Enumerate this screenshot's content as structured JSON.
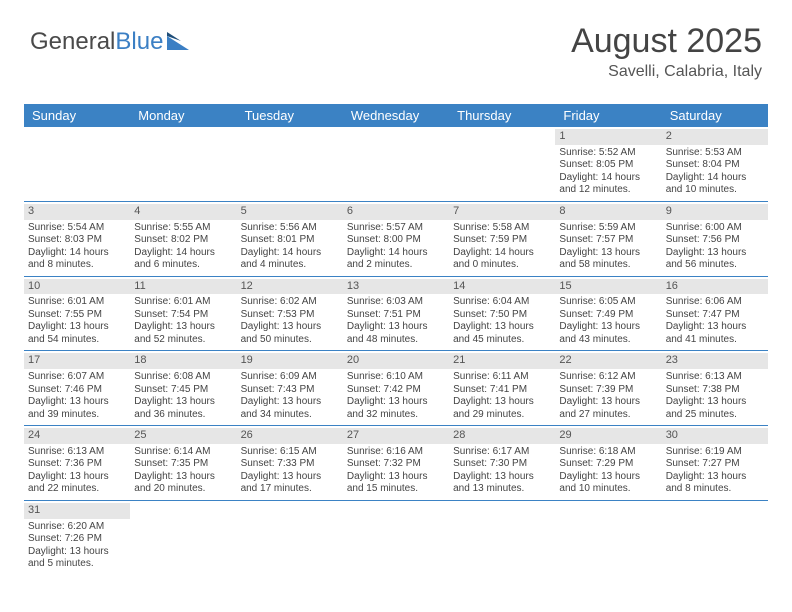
{
  "logo": {
    "text1": "General",
    "text2": "Blue",
    "color1": "#4a4a4a",
    "color2": "#3b7fc4"
  },
  "title": "August 2025",
  "location": "Savelli, Calabria, Italy",
  "header_bg": "#3b82c4",
  "row_border": "#3b82c4",
  "daynum_bg": "#e6e6e6",
  "days": [
    "Sunday",
    "Monday",
    "Tuesday",
    "Wednesday",
    "Thursday",
    "Friday",
    "Saturday"
  ],
  "weeks": [
    [
      null,
      null,
      null,
      null,
      null,
      {
        "n": "1",
        "sr": "Sunrise: 5:52 AM",
        "ss": "Sunset: 8:05 PM",
        "d1": "Daylight: 14 hours",
        "d2": "and 12 minutes."
      },
      {
        "n": "2",
        "sr": "Sunrise: 5:53 AM",
        "ss": "Sunset: 8:04 PM",
        "d1": "Daylight: 14 hours",
        "d2": "and 10 minutes."
      }
    ],
    [
      {
        "n": "3",
        "sr": "Sunrise: 5:54 AM",
        "ss": "Sunset: 8:03 PM",
        "d1": "Daylight: 14 hours",
        "d2": "and 8 minutes."
      },
      {
        "n": "4",
        "sr": "Sunrise: 5:55 AM",
        "ss": "Sunset: 8:02 PM",
        "d1": "Daylight: 14 hours",
        "d2": "and 6 minutes."
      },
      {
        "n": "5",
        "sr": "Sunrise: 5:56 AM",
        "ss": "Sunset: 8:01 PM",
        "d1": "Daylight: 14 hours",
        "d2": "and 4 minutes."
      },
      {
        "n": "6",
        "sr": "Sunrise: 5:57 AM",
        "ss": "Sunset: 8:00 PM",
        "d1": "Daylight: 14 hours",
        "d2": "and 2 minutes."
      },
      {
        "n": "7",
        "sr": "Sunrise: 5:58 AM",
        "ss": "Sunset: 7:59 PM",
        "d1": "Daylight: 14 hours",
        "d2": "and 0 minutes."
      },
      {
        "n": "8",
        "sr": "Sunrise: 5:59 AM",
        "ss": "Sunset: 7:57 PM",
        "d1": "Daylight: 13 hours",
        "d2": "and 58 minutes."
      },
      {
        "n": "9",
        "sr": "Sunrise: 6:00 AM",
        "ss": "Sunset: 7:56 PM",
        "d1": "Daylight: 13 hours",
        "d2": "and 56 minutes."
      }
    ],
    [
      {
        "n": "10",
        "sr": "Sunrise: 6:01 AM",
        "ss": "Sunset: 7:55 PM",
        "d1": "Daylight: 13 hours",
        "d2": "and 54 minutes."
      },
      {
        "n": "11",
        "sr": "Sunrise: 6:01 AM",
        "ss": "Sunset: 7:54 PM",
        "d1": "Daylight: 13 hours",
        "d2": "and 52 minutes."
      },
      {
        "n": "12",
        "sr": "Sunrise: 6:02 AM",
        "ss": "Sunset: 7:53 PM",
        "d1": "Daylight: 13 hours",
        "d2": "and 50 minutes."
      },
      {
        "n": "13",
        "sr": "Sunrise: 6:03 AM",
        "ss": "Sunset: 7:51 PM",
        "d1": "Daylight: 13 hours",
        "d2": "and 48 minutes."
      },
      {
        "n": "14",
        "sr": "Sunrise: 6:04 AM",
        "ss": "Sunset: 7:50 PM",
        "d1": "Daylight: 13 hours",
        "d2": "and 45 minutes."
      },
      {
        "n": "15",
        "sr": "Sunrise: 6:05 AM",
        "ss": "Sunset: 7:49 PM",
        "d1": "Daylight: 13 hours",
        "d2": "and 43 minutes."
      },
      {
        "n": "16",
        "sr": "Sunrise: 6:06 AM",
        "ss": "Sunset: 7:47 PM",
        "d1": "Daylight: 13 hours",
        "d2": "and 41 minutes."
      }
    ],
    [
      {
        "n": "17",
        "sr": "Sunrise: 6:07 AM",
        "ss": "Sunset: 7:46 PM",
        "d1": "Daylight: 13 hours",
        "d2": "and 39 minutes."
      },
      {
        "n": "18",
        "sr": "Sunrise: 6:08 AM",
        "ss": "Sunset: 7:45 PM",
        "d1": "Daylight: 13 hours",
        "d2": "and 36 minutes."
      },
      {
        "n": "19",
        "sr": "Sunrise: 6:09 AM",
        "ss": "Sunset: 7:43 PM",
        "d1": "Daylight: 13 hours",
        "d2": "and 34 minutes."
      },
      {
        "n": "20",
        "sr": "Sunrise: 6:10 AM",
        "ss": "Sunset: 7:42 PM",
        "d1": "Daylight: 13 hours",
        "d2": "and 32 minutes."
      },
      {
        "n": "21",
        "sr": "Sunrise: 6:11 AM",
        "ss": "Sunset: 7:41 PM",
        "d1": "Daylight: 13 hours",
        "d2": "and 29 minutes."
      },
      {
        "n": "22",
        "sr": "Sunrise: 6:12 AM",
        "ss": "Sunset: 7:39 PM",
        "d1": "Daylight: 13 hours",
        "d2": "and 27 minutes."
      },
      {
        "n": "23",
        "sr": "Sunrise: 6:13 AM",
        "ss": "Sunset: 7:38 PM",
        "d1": "Daylight: 13 hours",
        "d2": "and 25 minutes."
      }
    ],
    [
      {
        "n": "24",
        "sr": "Sunrise: 6:13 AM",
        "ss": "Sunset: 7:36 PM",
        "d1": "Daylight: 13 hours",
        "d2": "and 22 minutes."
      },
      {
        "n": "25",
        "sr": "Sunrise: 6:14 AM",
        "ss": "Sunset: 7:35 PM",
        "d1": "Daylight: 13 hours",
        "d2": "and 20 minutes."
      },
      {
        "n": "26",
        "sr": "Sunrise: 6:15 AM",
        "ss": "Sunset: 7:33 PM",
        "d1": "Daylight: 13 hours",
        "d2": "and 17 minutes."
      },
      {
        "n": "27",
        "sr": "Sunrise: 6:16 AM",
        "ss": "Sunset: 7:32 PM",
        "d1": "Daylight: 13 hours",
        "d2": "and 15 minutes."
      },
      {
        "n": "28",
        "sr": "Sunrise: 6:17 AM",
        "ss": "Sunset: 7:30 PM",
        "d1": "Daylight: 13 hours",
        "d2": "and 13 minutes."
      },
      {
        "n": "29",
        "sr": "Sunrise: 6:18 AM",
        "ss": "Sunset: 7:29 PM",
        "d1": "Daylight: 13 hours",
        "d2": "and 10 minutes."
      },
      {
        "n": "30",
        "sr": "Sunrise: 6:19 AM",
        "ss": "Sunset: 7:27 PM",
        "d1": "Daylight: 13 hours",
        "d2": "and 8 minutes."
      }
    ],
    [
      {
        "n": "31",
        "sr": "Sunrise: 6:20 AM",
        "ss": "Sunset: 7:26 PM",
        "d1": "Daylight: 13 hours",
        "d2": "and 5 minutes."
      },
      null,
      null,
      null,
      null,
      null,
      null
    ]
  ]
}
